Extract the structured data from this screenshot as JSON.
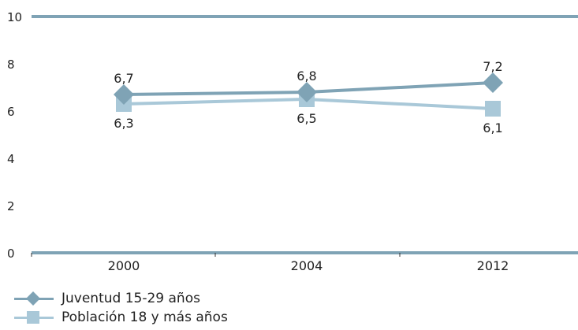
{
  "chart_data": {
    "type": "line",
    "categories": [
      "2000",
      "2004",
      "2012"
    ],
    "series": [
      {
        "name": "Juventud 15-29 años",
        "values": [
          6.7,
          6.8,
          7.2
        ],
        "labels": [
          "6,7",
          "6,8",
          "7,2"
        ],
        "marker": "diamond",
        "color": "#7fa3b5"
      },
      {
        "name": "Población 18 y más años",
        "values": [
          6.3,
          6.5,
          6.1
        ],
        "labels": [
          "6,3",
          "6,5",
          "6,1"
        ],
        "marker": "square",
        "color": "#a9c8d8"
      }
    ],
    "yticks": [
      "0",
      "2",
      "4",
      "6",
      "8",
      "10"
    ],
    "ylim": [
      0,
      10
    ],
    "grid": false,
    "legend_position": "bottom-left",
    "axis_color": "#7fa3b5"
  }
}
